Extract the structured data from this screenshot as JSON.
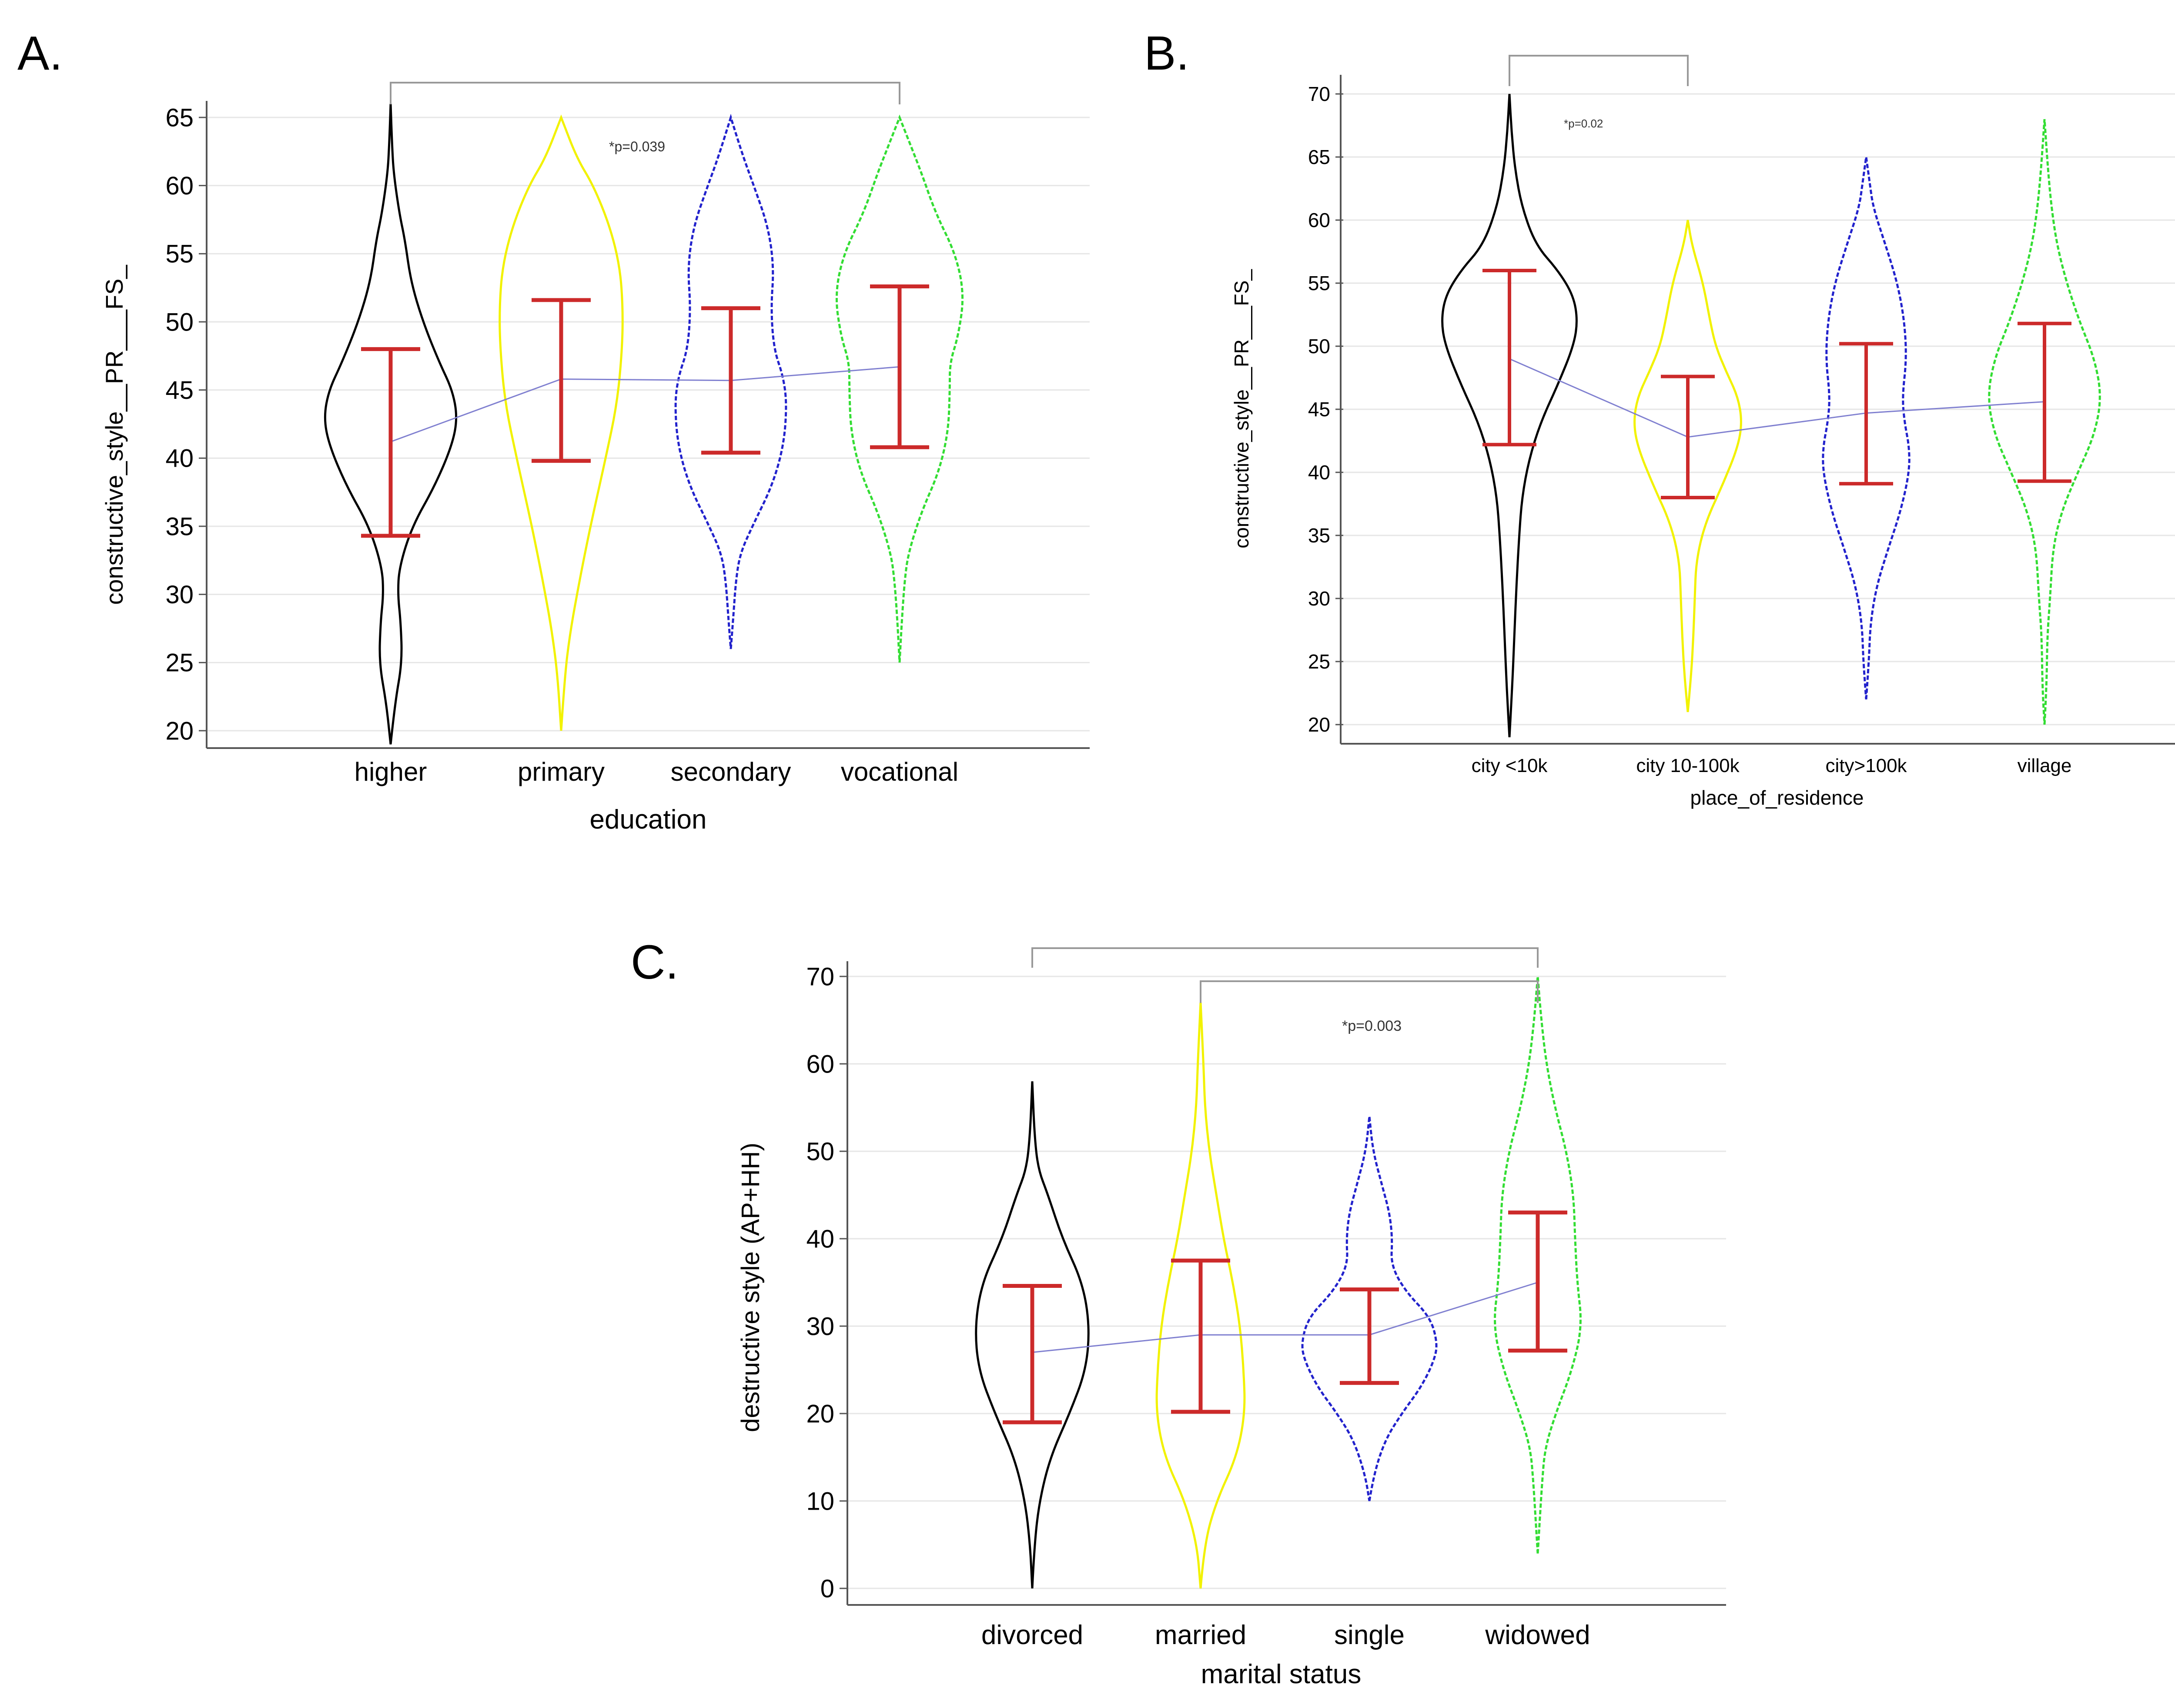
{
  "chart_data": [
    {
      "type": "violin",
      "panel_label": "A.",
      "title": "",
      "xlabel": "education",
      "ylabel": "constructive_style__PR___FS_",
      "ylim": [
        20,
        65
      ],
      "yticks": [
        20,
        25,
        30,
        35,
        40,
        45,
        50,
        55,
        60,
        65
      ],
      "grid": true,
      "categories": [
        "higher",
        "primary",
        "secondary",
        "vocational"
      ],
      "colors": [
        "#000000",
        "#f2f200",
        "#2222cc",
        "#33dd33"
      ],
      "dashed": [
        false,
        false,
        true,
        true
      ],
      "violins": [
        {
          "min": 19,
          "max": 66,
          "profile": [
            [
              19,
              0
            ],
            [
              22,
              0.06
            ],
            [
              25,
              0.16
            ],
            [
              28,
              0.14
            ],
            [
              30,
              0.1
            ],
            [
              32,
              0.12
            ],
            [
              35,
              0.3
            ],
            [
              38,
              0.62
            ],
            [
              41,
              0.86
            ],
            [
              43,
              0.93
            ],
            [
              45,
              0.86
            ],
            [
              47,
              0.68
            ],
            [
              50,
              0.45
            ],
            [
              53,
              0.28
            ],
            [
              56,
              0.2
            ],
            [
              58,
              0.12
            ],
            [
              61,
              0.04
            ],
            [
              63,
              0.02
            ],
            [
              66,
              0
            ]
          ]
        },
        {
          "min": 20,
          "max": 65,
          "profile": [
            [
              20,
              0
            ],
            [
              24,
              0.05
            ],
            [
              27,
              0.12
            ],
            [
              30,
              0.22
            ],
            [
              33,
              0.33
            ],
            [
              36,
              0.45
            ],
            [
              40,
              0.62
            ],
            [
              44,
              0.78
            ],
            [
              48,
              0.85
            ],
            [
              51,
              0.86
            ],
            [
              54,
              0.82
            ],
            [
              57,
              0.68
            ],
            [
              60,
              0.45
            ],
            [
              62,
              0.22
            ],
            [
              65,
              0
            ]
          ]
        },
        {
          "min": 26,
          "max": 65,
          "profile": [
            [
              26,
              0
            ],
            [
              28,
              0.03
            ],
            [
              31,
              0.07
            ],
            [
              33,
              0.13
            ],
            [
              35,
              0.3
            ],
            [
              38,
              0.58
            ],
            [
              41,
              0.74
            ],
            [
              44,
              0.78
            ],
            [
              46,
              0.73
            ],
            [
              48,
              0.6
            ],
            [
              51,
              0.56
            ],
            [
              54,
              0.6
            ],
            [
              57,
              0.52
            ],
            [
              60,
              0.32
            ],
            [
              62,
              0.18
            ],
            [
              65,
              0
            ]
          ]
        },
        {
          "min": 25,
          "max": 65,
          "profile": [
            [
              25,
              0
            ],
            [
              28,
              0.03
            ],
            [
              31,
              0.07
            ],
            [
              33,
              0.12
            ],
            [
              36,
              0.3
            ],
            [
              39,
              0.55
            ],
            [
              42,
              0.68
            ],
            [
              45,
              0.7
            ],
            [
              47,
              0.7
            ],
            [
              49,
              0.82
            ],
            [
              52,
              0.9
            ],
            [
              55,
              0.78
            ],
            [
              58,
              0.5
            ],
            [
              61,
              0.3
            ],
            [
              63,
              0.15
            ],
            [
              65,
              0
            ]
          ]
        }
      ],
      "error_bars": [
        {
          "low": 34.3,
          "high": 48.0,
          "center": 41.2
        },
        {
          "low": 39.8,
          "high": 51.6,
          "center": 45.8
        },
        {
          "low": 40.4,
          "high": 51.0,
          "center": 45.7
        },
        {
          "low": 40.8,
          "high": 52.6,
          "center": 46.7
        }
      ],
      "bracket_between": [
        "higher",
        "vocational"
      ],
      "annotation": "*p=0.039"
    },
    {
      "type": "violin",
      "panel_label": "B.",
      "title": "",
      "xlabel": "place_of_residence",
      "ylabel": "constructive_style__PR___FS_",
      "ylim": [
        20,
        70
      ],
      "yticks": [
        20,
        25,
        30,
        35,
        40,
        45,
        50,
        55,
        60,
        65,
        70
      ],
      "grid": true,
      "categories": [
        "city <10k",
        "city 10-100k",
        "city>100k",
        "village"
      ],
      "colors": [
        "#000000",
        "#f2f200",
        "#2222cc",
        "#33dd33"
      ],
      "dashed": [
        false,
        false,
        true,
        true
      ],
      "violins": [
        {
          "min": 19,
          "max": 70,
          "profile": [
            [
              19,
              0
            ],
            [
              23,
              0.04
            ],
            [
              27,
              0.07
            ],
            [
              31,
              0.1
            ],
            [
              35,
              0.14
            ],
            [
              38,
              0.18
            ],
            [
              41,
              0.28
            ],
            [
              44,
              0.45
            ],
            [
              47,
              0.7
            ],
            [
              50,
              0.92
            ],
            [
              52,
              0.98
            ],
            [
              54,
              0.92
            ],
            [
              56,
              0.7
            ],
            [
              58,
              0.38
            ],
            [
              61,
              0.18
            ],
            [
              64,
              0.08
            ],
            [
              67,
              0.03
            ],
            [
              70,
              0
            ]
          ]
        },
        {
          "min": 21,
          "max": 60,
          "profile": [
            [
              21,
              0
            ],
            [
              24,
              0.05
            ],
            [
              27,
              0.08
            ],
            [
              30,
              0.1
            ],
            [
              33,
              0.12
            ],
            [
              36,
              0.25
            ],
            [
              39,
              0.5
            ],
            [
              42,
              0.72
            ],
            [
              44,
              0.78
            ],
            [
              46,
              0.72
            ],
            [
              48,
              0.55
            ],
            [
              50,
              0.4
            ],
            [
              52,
              0.32
            ],
            [
              55,
              0.22
            ],
            [
              58,
              0.06
            ],
            [
              60,
              0
            ]
          ]
        },
        {
          "min": 22,
          "max": 65,
          "profile": [
            [
              22,
              0
            ],
            [
              25,
              0.04
            ],
            [
              28,
              0.06
            ],
            [
              31,
              0.15
            ],
            [
              34,
              0.32
            ],
            [
              37,
              0.5
            ],
            [
              40,
              0.62
            ],
            [
              42,
              0.62
            ],
            [
              44,
              0.55
            ],
            [
              46,
              0.52
            ],
            [
              49,
              0.58
            ],
            [
              52,
              0.55
            ],
            [
              55,
              0.45
            ],
            [
              58,
              0.28
            ],
            [
              61,
              0.1
            ],
            [
              63,
              0.05
            ],
            [
              65,
              0
            ]
          ]
        },
        {
          "min": 20,
          "max": 68,
          "profile": [
            [
              20,
              0
            ],
            [
              23,
              0.03
            ],
            [
              27,
              0.04
            ],
            [
              30,
              0.08
            ],
            [
              34,
              0.12
            ],
            [
              37,
              0.25
            ],
            [
              40,
              0.48
            ],
            [
              43,
              0.72
            ],
            [
              46,
              0.82
            ],
            [
              49,
              0.72
            ],
            [
              52,
              0.5
            ],
            [
              55,
              0.32
            ],
            [
              58,
              0.18
            ],
            [
              61,
              0.1
            ],
            [
              64,
              0.05
            ],
            [
              68,
              0
            ]
          ]
        }
      ],
      "error_bars": [
        {
          "low": 42.2,
          "high": 56.0,
          "center": 49.0
        },
        {
          "low": 38.0,
          "high": 47.6,
          "center": 42.8
        },
        {
          "low": 39.1,
          "high": 50.2,
          "center": 44.7
        },
        {
          "low": 39.3,
          "high": 51.8,
          "center": 45.6
        }
      ],
      "bracket_between": [
        "city <10k",
        "city 10-100k"
      ],
      "annotation": "*p=0.02"
    },
    {
      "type": "violin",
      "panel_label": "C.",
      "title": "",
      "xlabel": "marital status",
      "ylabel": "destructive style (AP+HH)",
      "ylim": [
        0,
        70
      ],
      "yticks": [
        0,
        10,
        20,
        30,
        40,
        50,
        60,
        70
      ],
      "grid": true,
      "categories": [
        "divorced",
        "married",
        "single",
        "widowed"
      ],
      "colors": [
        "#000000",
        "#f2f200",
        "#2222cc",
        "#33dd33"
      ],
      "dashed": [
        false,
        false,
        true,
        true
      ],
      "violins": [
        {
          "min": 0,
          "max": 58,
          "profile": [
            [
              0,
              0
            ],
            [
              5,
              0.03
            ],
            [
              10,
              0.1
            ],
            [
              15,
              0.25
            ],
            [
              20,
              0.52
            ],
            [
              25,
              0.75
            ],
            [
              30,
              0.8
            ],
            [
              35,
              0.7
            ],
            [
              40,
              0.42
            ],
            [
              45,
              0.22
            ],
            [
              48,
              0.08
            ],
            [
              52,
              0.03
            ],
            [
              58,
              0
            ]
          ]
        },
        {
          "min": 0,
          "max": 67,
          "profile": [
            [
              0,
              0
            ],
            [
              5,
              0.05
            ],
            [
              10,
              0.22
            ],
            [
              15,
              0.5
            ],
            [
              20,
              0.62
            ],
            [
              25,
              0.6
            ],
            [
              30,
              0.55
            ],
            [
              35,
              0.45
            ],
            [
              40,
              0.32
            ],
            [
              45,
              0.22
            ],
            [
              50,
              0.12
            ],
            [
              55,
              0.06
            ],
            [
              60,
              0.04
            ],
            [
              67,
              0
            ]
          ]
        },
        {
          "min": 10,
          "max": 54,
          "profile": [
            [
              10,
              0
            ],
            [
              13,
              0.06
            ],
            [
              17,
              0.22
            ],
            [
              20,
              0.45
            ],
            [
              23,
              0.72
            ],
            [
              26,
              0.9
            ],
            [
              28,
              0.95
            ],
            [
              31,
              0.85
            ],
            [
              34,
              0.5
            ],
            [
              37,
              0.3
            ],
            [
              40,
              0.32
            ],
            [
              43,
              0.28
            ],
            [
              46,
              0.18
            ],
            [
              50,
              0.05
            ],
            [
              54,
              0
            ]
          ]
        },
        {
          "min": 4,
          "max": 70,
          "profile": [
            [
              4,
              0
            ],
            [
              8,
              0.03
            ],
            [
              12,
              0.06
            ],
            [
              16,
              0.1
            ],
            [
              20,
              0.25
            ],
            [
              25,
              0.48
            ],
            [
              30,
              0.62
            ],
            [
              35,
              0.55
            ],
            [
              40,
              0.52
            ],
            [
              45,
              0.5
            ],
            [
              50,
              0.4
            ],
            [
              55,
              0.24
            ],
            [
              60,
              0.12
            ],
            [
              65,
              0.05
            ],
            [
              70,
              0
            ]
          ]
        }
      ],
      "error_bars": [
        {
          "low": 19.0,
          "high": 34.6,
          "center": 27.0
        },
        {
          "low": 20.2,
          "high": 37.5,
          "center": 29.0
        },
        {
          "low": 23.5,
          "high": 34.2,
          "center": 29.0
        },
        {
          "low": 27.2,
          "high": 43.0,
          "center": 35.0
        }
      ],
      "brackets": [
        [
          "divorced",
          "widowed"
        ],
        [
          "married",
          "widowed"
        ]
      ],
      "annotation": "*p=0.003"
    }
  ]
}
